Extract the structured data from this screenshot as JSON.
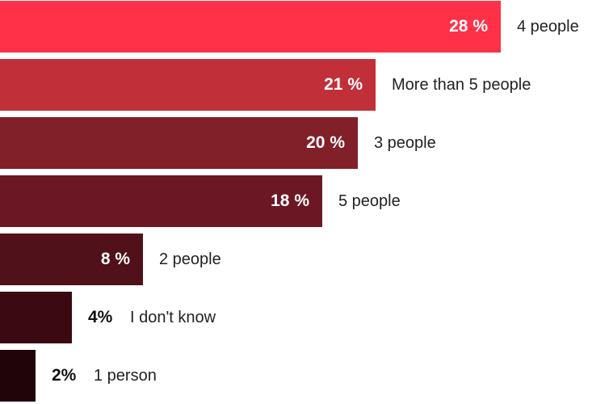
{
  "chart_data": {
    "type": "bar",
    "orientation": "horizontal",
    "title": "",
    "xlabel": "",
    "ylabel": "",
    "xlim": [
      0,
      34.1
    ],
    "grid": false,
    "categories": [
      "4 people",
      "More than 5 people",
      "3 people",
      "5 people",
      "2 people",
      "I don't know",
      "1 person"
    ],
    "values": [
      28,
      21,
      20,
      18,
      8,
      4,
      2
    ],
    "value_labels": [
      "28 %",
      "21 %",
      "20 %",
      "18 %",
      "8 %",
      "4%",
      "2%"
    ],
    "colors": [
      "#fe3148",
      "#c13039",
      "#82202a",
      "#6c1824",
      "#51111a",
      "#3a0912",
      "#21030a"
    ]
  }
}
